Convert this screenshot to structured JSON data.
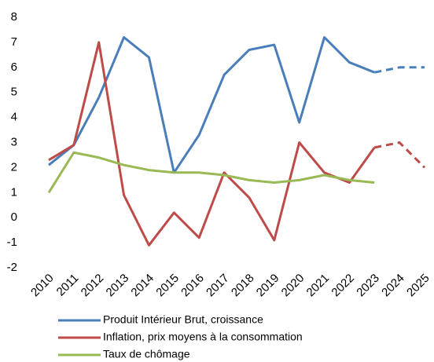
{
  "chart_data": {
    "type": "line",
    "categories": [
      "2010",
      "2011",
      "2012",
      "2013",
      "2014",
      "2015",
      "2016",
      "2017",
      "2018",
      "2019",
      "2020",
      "2021",
      "2022",
      "2023",
      "2024",
      "2025"
    ],
    "forecast_from": "2023",
    "series": [
      {
        "name": "Produit Intérieur Brut, croissance",
        "color": "#4a7ebb",
        "values": [
          2.1,
          2.9,
          4.8,
          7.2,
          6.4,
          1.8,
          3.3,
          5.7,
          6.7,
          6.9,
          3.8,
          7.2,
          6.2,
          5.8,
          6.0,
          6.0
        ]
      },
      {
        "name": "Inflation, prix moyens à la consommation",
        "color": "#be4b48",
        "values": [
          2.3,
          2.9,
          7.0,
          0.9,
          -1.1,
          0.2,
          -0.8,
          1.8,
          0.8,
          -0.9,
          3.0,
          1.8,
          1.4,
          2.8,
          3.0,
          2.0
        ]
      },
      {
        "name": "Taux de chômage",
        "color": "#98b954",
        "values": [
          1.0,
          2.6,
          2.4,
          2.1,
          1.9,
          1.8,
          1.8,
          1.7,
          1.5,
          1.4,
          1.5,
          1.7,
          1.5,
          1.4,
          null,
          null
        ]
      }
    ],
    "ylim": [
      -2,
      8
    ],
    "yticks": [
      -2,
      -1,
      0,
      1,
      2,
      3,
      4,
      5,
      6,
      7,
      8
    ],
    "grid": false,
    "legend": "bottom"
  }
}
